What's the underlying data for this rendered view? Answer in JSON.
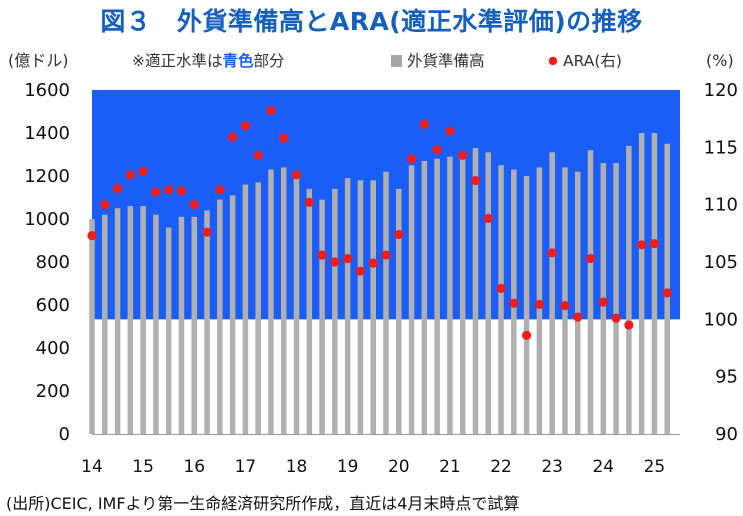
{
  "title": "図３　外貨準備高とARA(適正水準評価)の推移",
  "source": "(出所)CEIC, IMFより第一生命経済研究所作成，直近は4月末時点で試算",
  "chart_data": {
    "type": "bar+scatter",
    "left_unit": "(億ドル)",
    "right_unit": "(%)",
    "note_prefix": "※適正水準は",
    "note_blue": "青色",
    "note_suffix": "部分",
    "legend": [
      "外貨準備高",
      "ARA(右)"
    ],
    "left_ylim": [
      0,
      1600
    ],
    "left_yticks": [
      "0",
      "200",
      "400",
      "600",
      "800",
      "1000",
      "1200",
      "1400",
      "1600"
    ],
    "right_ylim": [
      90,
      120
    ],
    "right_yticks": [
      "90",
      "95",
      "100",
      "105",
      "110",
      "115",
      "120"
    ],
    "adequacy_band_right_axis": [
      100,
      120
    ],
    "x_range": [
      2014,
      2025.5
    ],
    "x_tick_labels": [
      "14",
      "15",
      "16",
      "17",
      "18",
      "19",
      "20",
      "21",
      "22",
      "23",
      "24",
      "25"
    ],
    "colors": {
      "band": "#1a5ef7",
      "bar": "#b0b0b0",
      "ara": "#ef1c1c",
      "title": "#1560bd"
    },
    "series": [
      {
        "name": "外貨準備高",
        "x": [
          2014.0,
          2014.25,
          2014.5,
          2014.75,
          2015.0,
          2015.25,
          2015.5,
          2015.75,
          2016.0,
          2016.25,
          2016.5,
          2016.75,
          2017.0,
          2017.25,
          2017.5,
          2017.75,
          2018.0,
          2018.25,
          2018.5,
          2018.75,
          2019.0,
          2019.25,
          2019.5,
          2019.75,
          2020.0,
          2020.25,
          2020.5,
          2020.75,
          2021.0,
          2021.25,
          2021.5,
          2021.75,
          2022.0,
          2022.25,
          2022.5,
          2022.75,
          2023.0,
          2023.25,
          2023.5,
          2023.75,
          2024.0,
          2024.25,
          2024.5,
          2024.75,
          2025.0,
          2025.25
        ],
        "values": [
          1000,
          1020,
          1050,
          1060,
          1060,
          1020,
          960,
          1010,
          1010,
          1040,
          1090,
          1110,
          1160,
          1170,
          1230,
          1240,
          1200,
          1140,
          1090,
          1140,
          1190,
          1180,
          1180,
          1220,
          1140,
          1250,
          1270,
          1280,
          1290,
          1300,
          1330,
          1310,
          1250,
          1230,
          1200,
          1240,
          1310,
          1240,
          1220,
          1320,
          1260,
          1260,
          1340,
          1400,
          1400,
          1350
        ]
      },
      {
        "name": "ARA(右)",
        "x": [
          2014.0,
          2014.25,
          2014.5,
          2014.75,
          2015.0,
          2015.25,
          2015.5,
          2015.75,
          2016.0,
          2016.25,
          2016.5,
          2016.75,
          2017.0,
          2017.25,
          2017.5,
          2017.75,
          2018.0,
          2018.25,
          2018.5,
          2018.75,
          2019.0,
          2019.25,
          2019.5,
          2019.75,
          2020.0,
          2020.25,
          2020.5,
          2020.75,
          2021.0,
          2021.25,
          2021.5,
          2021.75,
          2022.0,
          2022.25,
          2022.5,
          2022.75,
          2023.0,
          2023.25,
          2023.5,
          2023.75,
          2024.0,
          2024.25,
          2024.5,
          2024.75,
          2025.0,
          2025.25
        ],
        "values": [
          107.3,
          110.0,
          111.4,
          112.6,
          112.9,
          111.1,
          111.3,
          111.2,
          110.0,
          107.6,
          111.3,
          115.9,
          116.9,
          114.3,
          118.2,
          115.8,
          112.6,
          110.2,
          105.6,
          105.0,
          105.3,
          104.2,
          104.9,
          105.6,
          107.4,
          114.0,
          117.0,
          114.8,
          116.4,
          114.3,
          112.1,
          108.8,
          102.7,
          101.4,
          98.6,
          101.3,
          105.8,
          101.2,
          100.2,
          105.3,
          101.5,
          100.1,
          99.5,
          106.5,
          106.6,
          102.3
        ]
      }
    ]
  }
}
